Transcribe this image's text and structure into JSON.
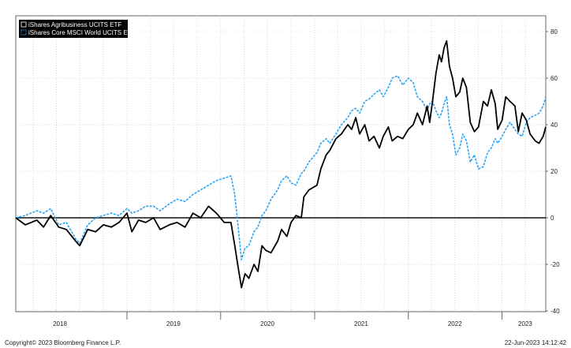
{
  "chart_data": {
    "type": "line",
    "x_range": [
      "2017-10-25",
      "2023-06-20"
    ],
    "ylim": [
      -40,
      85
    ],
    "y_ticks": [
      -40,
      -20,
      0,
      20,
      40,
      60,
      80
    ],
    "y_axis_side": "right",
    "grid": true,
    "legend_placement": "top-left",
    "x_tick_labels": [
      "2018",
      "2019",
      "2020",
      "2021",
      "2022",
      "2023"
    ],
    "x_label_dates": [
      "2018-04-15",
      "2019-07-01",
      "2020-07-01",
      "2021-07-01",
      "2022-07-01",
      "2023-04-01"
    ],
    "x_separator_dates": [
      "2019-01-01",
      "2020-01-01",
      "2021-01-01",
      "2022-01-01",
      "2023-01-01"
    ],
    "series": [
      {
        "name": "iShares Agribusiness UCITS ETF",
        "color": "#000000",
        "style": "solid",
        "points": [
          [
            "2017-10-25",
            0
          ],
          [
            "2017-12-01",
            -3
          ],
          [
            "2018-01-15",
            -1
          ],
          [
            "2018-02-10",
            -4
          ],
          [
            "2018-03-10",
            1
          ],
          [
            "2018-04-10",
            -4
          ],
          [
            "2018-05-10",
            -5
          ],
          [
            "2018-06-15",
            -10
          ],
          [
            "2018-07-01",
            -12
          ],
          [
            "2018-08-01",
            -5
          ],
          [
            "2018-09-01",
            -6
          ],
          [
            "2018-10-01",
            -3
          ],
          [
            "2018-11-01",
            -4
          ],
          [
            "2018-12-01",
            -2
          ],
          [
            "2019-01-01",
            2
          ],
          [
            "2019-01-20",
            -6
          ],
          [
            "2019-02-15",
            -1
          ],
          [
            "2019-03-15",
            -2
          ],
          [
            "2019-04-15",
            0
          ],
          [
            "2019-05-10",
            -5
          ],
          [
            "2019-06-15",
            -3
          ],
          [
            "2019-07-15",
            -2
          ],
          [
            "2019-08-15",
            -4
          ],
          [
            "2019-09-15",
            2
          ],
          [
            "2019-10-15",
            0
          ],
          [
            "2019-11-15",
            5
          ],
          [
            "2019-12-15",
            2
          ],
          [
            "2020-01-15",
            -2
          ],
          [
            "2020-02-10",
            -2
          ],
          [
            "2020-02-25",
            -12
          ],
          [
            "2020-03-10",
            -22
          ],
          [
            "2020-03-22",
            -30
          ],
          [
            "2020-04-05",
            -24
          ],
          [
            "2020-04-20",
            -26
          ],
          [
            "2020-05-10",
            -20
          ],
          [
            "2020-05-25",
            -23
          ],
          [
            "2020-06-10",
            -12
          ],
          [
            "2020-06-25",
            -14
          ],
          [
            "2020-07-15",
            -15
          ],
          [
            "2020-08-10",
            -10
          ],
          [
            "2020-08-25",
            -5
          ],
          [
            "2020-09-15",
            -8
          ],
          [
            "2020-10-01",
            -2
          ],
          [
            "2020-10-20",
            1
          ],
          [
            "2020-11-10",
            0
          ],
          [
            "2020-11-20",
            9
          ],
          [
            "2020-12-10",
            12
          ],
          [
            "2021-01-10",
            14
          ],
          [
            "2021-01-25",
            21
          ],
          [
            "2021-02-15",
            27
          ],
          [
            "2021-03-01",
            29
          ],
          [
            "2021-03-25",
            34
          ],
          [
            "2021-04-15",
            36
          ],
          [
            "2021-05-10",
            40
          ],
          [
            "2021-05-25",
            38
          ],
          [
            "2021-06-10",
            43
          ],
          [
            "2021-06-25",
            36
          ],
          [
            "2021-07-15",
            40
          ],
          [
            "2021-08-01",
            33
          ],
          [
            "2021-08-20",
            35
          ],
          [
            "2021-09-10",
            30
          ],
          [
            "2021-09-25",
            35
          ],
          [
            "2021-10-15",
            39
          ],
          [
            "2021-10-30",
            33
          ],
          [
            "2021-11-20",
            35
          ],
          [
            "2021-12-10",
            34
          ],
          [
            "2022-01-01",
            38
          ],
          [
            "2022-01-20",
            40
          ],
          [
            "2022-02-05",
            45
          ],
          [
            "2022-02-25",
            40
          ],
          [
            "2022-03-15",
            48
          ],
          [
            "2022-03-25",
            41
          ],
          [
            "2022-04-05",
            50
          ],
          [
            "2022-04-18",
            62
          ],
          [
            "2022-05-01",
            70
          ],
          [
            "2022-05-10",
            67
          ],
          [
            "2022-05-20",
            73
          ],
          [
            "2022-05-30",
            76
          ],
          [
            "2022-06-10",
            65
          ],
          [
            "2022-06-22",
            60
          ],
          [
            "2022-07-05",
            52
          ],
          [
            "2022-07-20",
            54
          ],
          [
            "2022-08-01",
            60
          ],
          [
            "2022-08-15",
            56
          ],
          [
            "2022-08-30",
            41
          ],
          [
            "2022-09-15",
            37
          ],
          [
            "2022-10-01",
            39
          ],
          [
            "2022-10-20",
            50
          ],
          [
            "2022-11-05",
            48
          ],
          [
            "2022-11-20",
            55
          ],
          [
            "2022-12-05",
            49
          ],
          [
            "2022-12-15",
            38
          ],
          [
            "2023-01-01",
            42
          ],
          [
            "2023-01-15",
            52
          ],
          [
            "2023-02-01",
            50
          ],
          [
            "2023-02-20",
            48
          ],
          [
            "2023-03-05",
            37
          ],
          [
            "2023-03-20",
            45
          ],
          [
            "2023-04-05",
            42
          ],
          [
            "2023-04-20",
            36
          ],
          [
            "2023-05-10",
            33
          ],
          [
            "2023-05-25",
            32
          ],
          [
            "2023-06-10",
            35
          ],
          [
            "2023-06-20",
            39
          ]
        ]
      },
      {
        "name": "iShares Core MSCI World UCITS ETF",
        "color": "#2aa4f4",
        "style": "dashed",
        "points": [
          [
            "2017-10-25",
            0
          ],
          [
            "2017-12-01",
            1
          ],
          [
            "2018-01-15",
            3
          ],
          [
            "2018-02-10",
            2
          ],
          [
            "2018-03-10",
            4
          ],
          [
            "2018-04-10",
            -3
          ],
          [
            "2018-05-10",
            -2
          ],
          [
            "2018-06-15",
            -9
          ],
          [
            "2018-07-01",
            -11
          ],
          [
            "2018-08-01",
            -3
          ],
          [
            "2018-09-01",
            0
          ],
          [
            "2018-10-01",
            1
          ],
          [
            "2018-11-01",
            2
          ],
          [
            "2018-12-01",
            1
          ],
          [
            "2019-01-01",
            4
          ],
          [
            "2019-01-20",
            2
          ],
          [
            "2019-02-15",
            3
          ],
          [
            "2019-03-15",
            5
          ],
          [
            "2019-04-15",
            5
          ],
          [
            "2019-05-10",
            3
          ],
          [
            "2019-06-15",
            6
          ],
          [
            "2019-07-15",
            8
          ],
          [
            "2019-08-15",
            7
          ],
          [
            "2019-09-15",
            10
          ],
          [
            "2019-10-15",
            12
          ],
          [
            "2019-11-15",
            14
          ],
          [
            "2019-12-15",
            16
          ],
          [
            "2020-01-15",
            17
          ],
          [
            "2020-02-10",
            18
          ],
          [
            "2020-02-25",
            10
          ],
          [
            "2020-03-10",
            -5
          ],
          [
            "2020-03-22",
            -18
          ],
          [
            "2020-04-05",
            -13
          ],
          [
            "2020-04-20",
            -12
          ],
          [
            "2020-05-10",
            -6
          ],
          [
            "2020-05-25",
            -4
          ],
          [
            "2020-06-10",
            1
          ],
          [
            "2020-06-25",
            3
          ],
          [
            "2020-07-15",
            8
          ],
          [
            "2020-08-10",
            12
          ],
          [
            "2020-08-25",
            16
          ],
          [
            "2020-09-15",
            18
          ],
          [
            "2020-10-01",
            15
          ],
          [
            "2020-10-20",
            14
          ],
          [
            "2020-11-10",
            19
          ],
          [
            "2020-11-20",
            20
          ],
          [
            "2020-12-10",
            24
          ],
          [
            "2021-01-10",
            28
          ],
          [
            "2021-01-25",
            32
          ],
          [
            "2021-02-15",
            34
          ],
          [
            "2021-03-01",
            32
          ],
          [
            "2021-03-25",
            36
          ],
          [
            "2021-04-15",
            40
          ],
          [
            "2021-05-10",
            43
          ],
          [
            "2021-05-25",
            46
          ],
          [
            "2021-06-10",
            47
          ],
          [
            "2021-06-25",
            45
          ],
          [
            "2021-07-15",
            50
          ],
          [
            "2021-08-01",
            51
          ],
          [
            "2021-08-20",
            53
          ],
          [
            "2021-09-10",
            55
          ],
          [
            "2021-09-25",
            52
          ],
          [
            "2021-10-15",
            56
          ],
          [
            "2021-10-30",
            60
          ],
          [
            "2021-11-20",
            61
          ],
          [
            "2021-12-10",
            57
          ],
          [
            "2022-01-01",
            60
          ],
          [
            "2022-01-20",
            58
          ],
          [
            "2022-02-05",
            52
          ],
          [
            "2022-02-25",
            50
          ],
          [
            "2022-03-15",
            46
          ],
          [
            "2022-03-25",
            49
          ],
          [
            "2022-04-05",
            50
          ],
          [
            "2022-04-18",
            46
          ],
          [
            "2022-05-01",
            43
          ],
          [
            "2022-05-10",
            45
          ],
          [
            "2022-05-20",
            49
          ],
          [
            "2022-05-30",
            52
          ],
          [
            "2022-06-10",
            40
          ],
          [
            "2022-06-22",
            36
          ],
          [
            "2022-07-05",
            27
          ],
          [
            "2022-07-20",
            30
          ],
          [
            "2022-08-01",
            36
          ],
          [
            "2022-08-15",
            33
          ],
          [
            "2022-08-30",
            24
          ],
          [
            "2022-09-15",
            27
          ],
          [
            "2022-10-01",
            21
          ],
          [
            "2022-10-20",
            22
          ],
          [
            "2022-11-05",
            28
          ],
          [
            "2022-11-20",
            30
          ],
          [
            "2022-12-05",
            34
          ],
          [
            "2022-12-15",
            32
          ],
          [
            "2023-01-01",
            35
          ],
          [
            "2023-01-15",
            38
          ],
          [
            "2023-02-01",
            41
          ],
          [
            "2023-02-20",
            38
          ],
          [
            "2023-03-05",
            36
          ],
          [
            "2023-03-20",
            35
          ],
          [
            "2023-04-05",
            41
          ],
          [
            "2023-04-20",
            43
          ],
          [
            "2023-05-10",
            44
          ],
          [
            "2023-05-25",
            45
          ],
          [
            "2023-06-10",
            48
          ],
          [
            "2023-06-20",
            52
          ]
        ]
      }
    ]
  },
  "footer": {
    "copyright": "Copyright© 2023 Bloomberg Finance L.P.",
    "timestamp": "22-Jun-2023 14:12:42"
  }
}
